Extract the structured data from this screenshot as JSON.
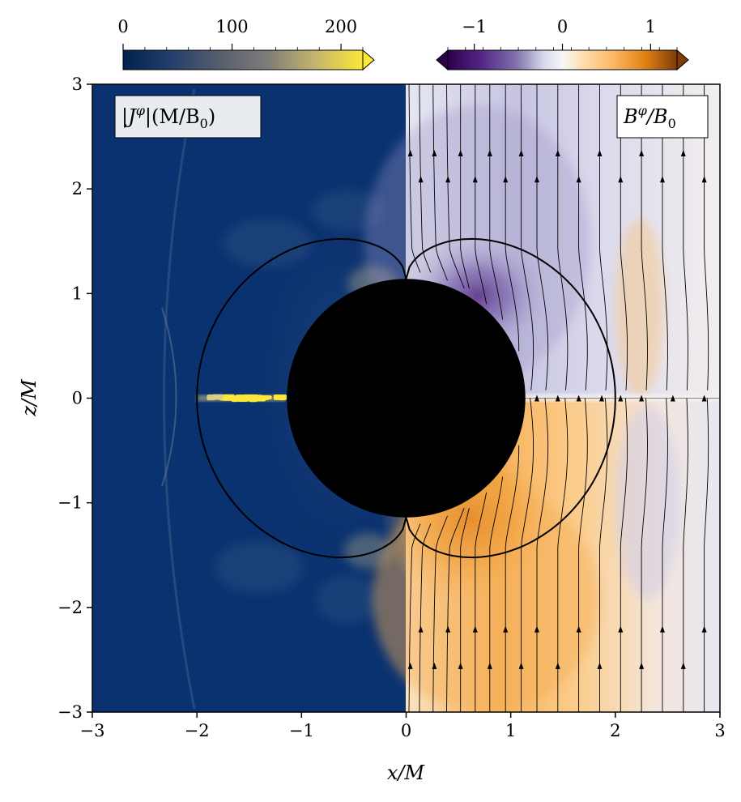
{
  "chart_data": {
    "type": "heatmap",
    "title": "",
    "xlabel": "x/M",
    "ylabel": "z/M",
    "xlim": [
      -3,
      3
    ],
    "ylim": [
      -3,
      3
    ],
    "x_ticks": [
      "−3",
      "−2",
      "−1",
      "0",
      "1",
      "2",
      "3"
    ],
    "y_ticks": [
      "3",
      "2",
      "1",
      "0",
      "−1",
      "−2",
      "−3"
    ],
    "grid": false,
    "left_panel": {
      "quantity": "|Jᶲ|(M/B₀)",
      "label_main": "|J",
      "label_sup": "φ",
      "label_tail": "|(M/B",
      "label_sub": "0",
      "label_close": ")",
      "colormap": "cividis",
      "colorbar_ticks": [
        "0",
        "100",
        "200"
      ],
      "colorbar_range": [
        0,
        220
      ],
      "colorbar_extend": "max",
      "hot_spot": {
        "z": 0,
        "x_from": -2.0,
        "x_to": -1.15,
        "value": 220
      }
    },
    "right_panel": {
      "quantity": "Bᶲ/B₀",
      "label_main": "B",
      "label_sup": "φ",
      "label_tail": "/B",
      "label_sub": "0",
      "colormap": "PuOr_r",
      "colorbar_ticks": [
        "−1",
        "0",
        "1"
      ],
      "colorbar_range": [
        -1.3,
        1.3
      ],
      "colorbar_extend": "both",
      "upper_sign": "negative",
      "lower_sign": "positive",
      "streamlines": "field lines (x ≥ 0)"
    },
    "horizon_radius": 1.14,
    "ergosphere_equatorial_radius": 2.0
  }
}
